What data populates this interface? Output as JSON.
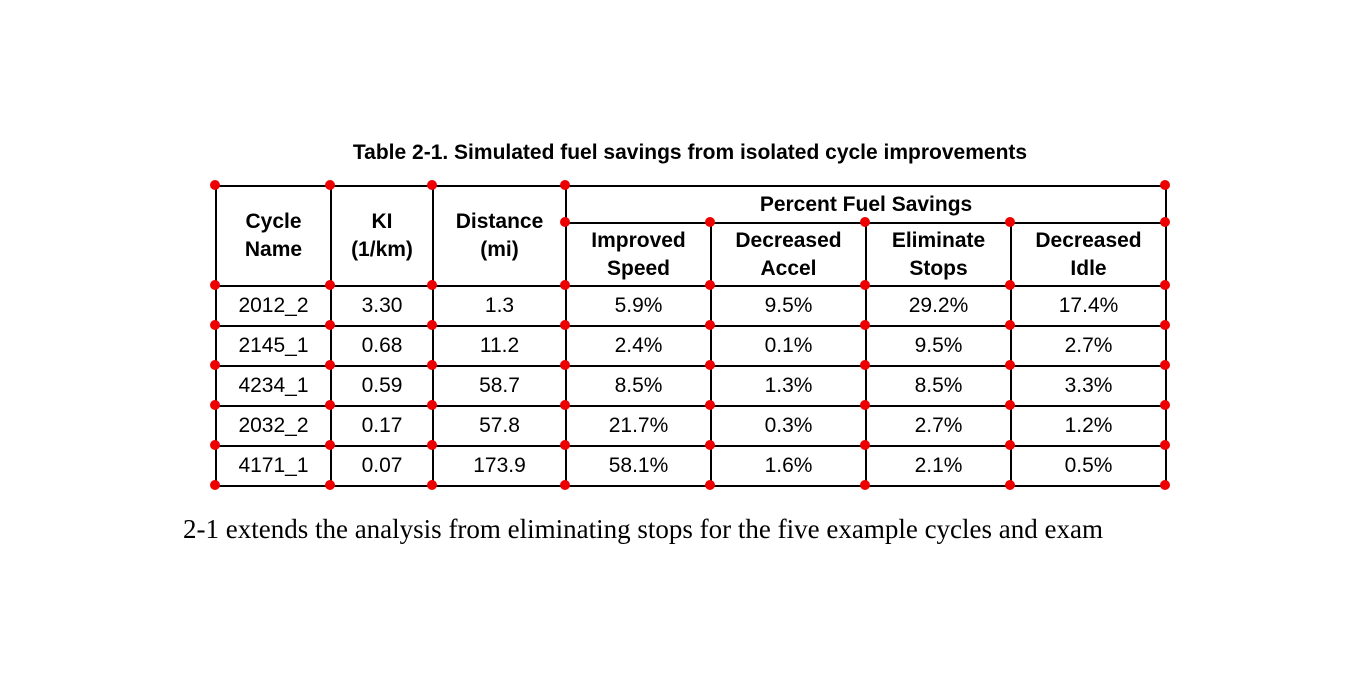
{
  "title": "Table 2-1. Simulated fuel savings from isolated cycle improvements",
  "table": {
    "group_header": "Percent Fuel Savings",
    "columns": [
      "Cycle\nName",
      "KI\n(1/km)",
      "Distance\n(mi)"
    ],
    "sub_columns": [
      "Improved\nSpeed",
      "Decreased\nAccel",
      "Eliminate\nStops",
      "Decreased\nIdle"
    ],
    "rows": [
      [
        "2012_2",
        "3.30",
        "1.3",
        "5.9%",
        "9.5%",
        "29.2%",
        "17.4%"
      ],
      [
        "2145_1",
        "0.68",
        "11.2",
        "2.4%",
        "0.1%",
        "9.5%",
        "2.7%"
      ],
      [
        "4234_1",
        "0.59",
        "58.7",
        "8.5%",
        "1.3%",
        "8.5%",
        "3.3%"
      ],
      [
        "2032_2",
        "0.17",
        "57.8",
        "21.7%",
        "0.3%",
        "2.7%",
        "1.2%"
      ],
      [
        "4171_1",
        "0.07",
        "173.9",
        "58.1%",
        "1.6%",
        "2.1%",
        "0.5%"
      ]
    ]
  },
  "body_text": "2-1 extends the analysis from eliminating stops for the five example cycles and exam",
  "marker_color": "#ee0000"
}
